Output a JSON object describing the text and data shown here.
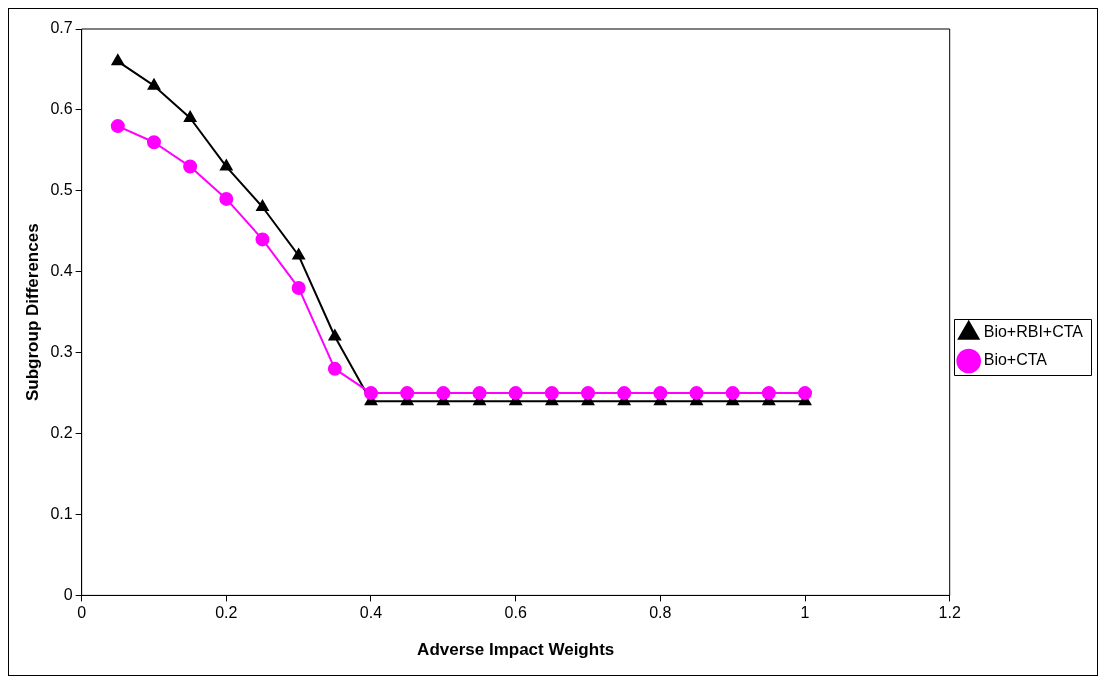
{
  "chart_data": {
    "type": "line",
    "xlabel": "Adverse Impact Weights",
    "ylabel": "Subgroup Differences",
    "x": [
      0.05,
      0.1,
      0.15,
      0.2,
      0.25,
      0.3,
      0.35,
      0.4,
      0.45,
      0.5,
      0.55,
      0.6,
      0.65,
      0.7,
      0.75,
      0.8,
      0.85,
      0.9,
      0.95,
      1
    ],
    "series": [
      {
        "name": "Bio+RBI+CTA",
        "color": "#000000",
        "marker": "triangle",
        "values": [
          0.66,
          0.63,
          0.59,
          0.53,
          0.48,
          0.42,
          0.32,
          0.24,
          0.24,
          0.24,
          0.24,
          0.24,
          0.24,
          0.24,
          0.24,
          0.24,
          0.24,
          0.24,
          0.24,
          0.24
        ]
      },
      {
        "name": "Bio+CTA",
        "color": "#ff00ff",
        "marker": "circle",
        "values": [
          0.58,
          0.56,
          0.53,
          0.49,
          0.44,
          0.38,
          0.28,
          0.25,
          0.25,
          0.25,
          0.25,
          0.25,
          0.25,
          0.25,
          0.25,
          0.25,
          0.25,
          0.25,
          0.25,
          0.25
        ]
      }
    ],
    "xlim": [
      0,
      1.2
    ],
    "xticks": [
      0,
      0.2,
      0.4,
      0.6,
      0.8,
      1,
      1.2
    ],
    "ylim": [
      0,
      0.7
    ],
    "yticks": [
      0,
      0.1,
      0.2,
      0.3,
      0.4,
      0.5,
      0.6,
      0.7
    ],
    "grid": false,
    "legend": "right"
  }
}
